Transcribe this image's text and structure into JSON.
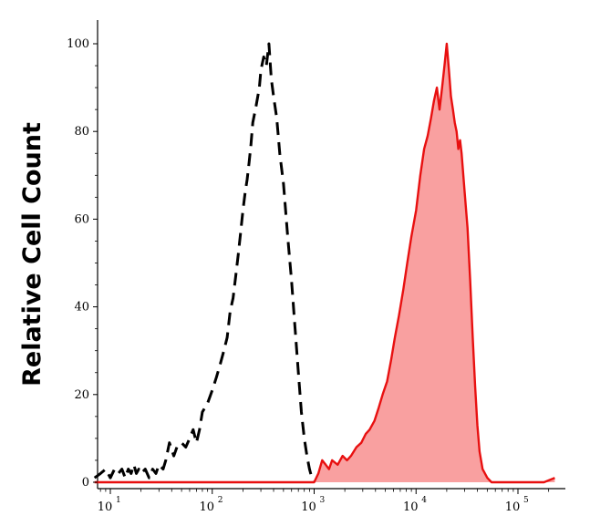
{
  "chart_data": {
    "type": "area",
    "title": "",
    "xlabel": "",
    "ylabel": "Relative Cell Count",
    "xscale": "log",
    "xlim": [
      7,
      250000
    ],
    "ylim": [
      -1,
      103
    ],
    "grid": false,
    "legend": "none",
    "y_ticks": [
      0,
      20,
      40,
      60,
      80,
      100
    ],
    "y_tick_labels": [
      "0",
      "20",
      "40",
      "60",
      "80",
      "100"
    ],
    "x_ticks": [
      {
        "value": 10,
        "base": "10",
        "exp": "1"
      },
      {
        "value": 100,
        "base": "10",
        "exp": "2"
      },
      {
        "value": 1000,
        "base": "10",
        "exp": "3"
      },
      {
        "value": 10000,
        "base": "10",
        "exp": "4"
      },
      {
        "value": 100000,
        "base": "10",
        "exp": "5"
      }
    ],
    "series": [
      {
        "style": "dashed",
        "color": "#000000",
        "fill": "none",
        "points": [
          [
            7,
            1
          ],
          [
            8,
            2
          ],
          [
            9,
            3
          ],
          [
            10,
            1
          ],
          [
            11,
            3
          ],
          [
            12,
            2
          ],
          [
            13,
            3
          ],
          [
            14,
            1
          ],
          [
            15,
            3
          ],
          [
            16,
            2
          ],
          [
            17,
            4
          ],
          [
            18,
            2
          ],
          [
            19,
            3
          ],
          [
            20,
            2
          ],
          [
            22,
            3
          ],
          [
            24,
            1
          ],
          [
            26,
            3
          ],
          [
            28,
            2
          ],
          [
            30,
            4
          ],
          [
            33,
            3
          ],
          [
            35,
            5
          ],
          [
            38,
            9
          ],
          [
            42,
            6
          ],
          [
            45,
            8
          ],
          [
            50,
            9
          ],
          [
            55,
            8
          ],
          [
            60,
            10
          ],
          [
            65,
            12
          ],
          [
            70,
            9
          ],
          [
            75,
            12
          ],
          [
            80,
            16
          ],
          [
            90,
            18
          ],
          [
            100,
            21
          ],
          [
            110,
            24
          ],
          [
            120,
            27
          ],
          [
            130,
            30
          ],
          [
            140,
            33
          ],
          [
            150,
            39
          ],
          [
            160,
            42
          ],
          [
            170,
            47
          ],
          [
            180,
            52
          ],
          [
            190,
            57
          ],
          [
            200,
            62
          ],
          [
            210,
            66
          ],
          [
            220,
            69
          ],
          [
            230,
            73
          ],
          [
            240,
            77
          ],
          [
            250,
            82
          ],
          [
            270,
            86
          ],
          [
            290,
            90
          ],
          [
            300,
            94
          ],
          [
            320,
            97
          ],
          [
            340,
            95
          ],
          [
            360,
            100
          ],
          [
            380,
            92
          ],
          [
            400,
            88
          ],
          [
            430,
            83
          ],
          [
            460,
            75
          ],
          [
            500,
            68
          ],
          [
            550,
            56
          ],
          [
            600,
            46
          ],
          [
            650,
            35
          ],
          [
            700,
            25
          ],
          [
            750,
            16
          ],
          [
            800,
            10
          ],
          [
            850,
            6
          ],
          [
            900,
            3
          ],
          [
            950,
            1
          ],
          [
            1000,
            0
          ]
        ]
      },
      {
        "style": "solid",
        "color": "#e81010",
        "fill": "#f9a0a0",
        "points": [
          [
            7,
            0
          ],
          [
            900,
            0
          ],
          [
            1000,
            0
          ],
          [
            1100,
            2
          ],
          [
            1200,
            5
          ],
          [
            1300,
            4
          ],
          [
            1400,
            3
          ],
          [
            1500,
            5
          ],
          [
            1700,
            4
          ],
          [
            1900,
            6
          ],
          [
            2100,
            5
          ],
          [
            2300,
            6
          ],
          [
            2600,
            8
          ],
          [
            2900,
            9
          ],
          [
            3200,
            11
          ],
          [
            3500,
            12
          ],
          [
            3900,
            14
          ],
          [
            4300,
            17
          ],
          [
            4700,
            20
          ],
          [
            5200,
            23
          ],
          [
            5700,
            28
          ],
          [
            6200,
            33
          ],
          [
            6800,
            38
          ],
          [
            7500,
            44
          ],
          [
            8200,
            50
          ],
          [
            9000,
            56
          ],
          [
            10000,
            62
          ],
          [
            11000,
            70
          ],
          [
            12000,
            76
          ],
          [
            13000,
            79
          ],
          [
            14000,
            83
          ],
          [
            15000,
            87
          ],
          [
            16000,
            90
          ],
          [
            17000,
            85
          ],
          [
            18000,
            90
          ],
          [
            19000,
            95
          ],
          [
            20000,
            100
          ],
          [
            21000,
            94
          ],
          [
            22000,
            88
          ],
          [
            23000,
            85
          ],
          [
            24000,
            82
          ],
          [
            25000,
            80
          ],
          [
            26000,
            76
          ],
          [
            27000,
            78
          ],
          [
            28000,
            75
          ],
          [
            30000,
            66
          ],
          [
            32000,
            58
          ],
          [
            34000,
            46
          ],
          [
            36000,
            33
          ],
          [
            38000,
            22
          ],
          [
            40000,
            13
          ],
          [
            42000,
            7
          ],
          [
            45000,
            3
          ],
          [
            50000,
            1
          ],
          [
            55000,
            0
          ],
          [
            100000,
            0
          ],
          [
            180000,
            0
          ],
          [
            230000,
            1
          ]
        ]
      }
    ]
  }
}
